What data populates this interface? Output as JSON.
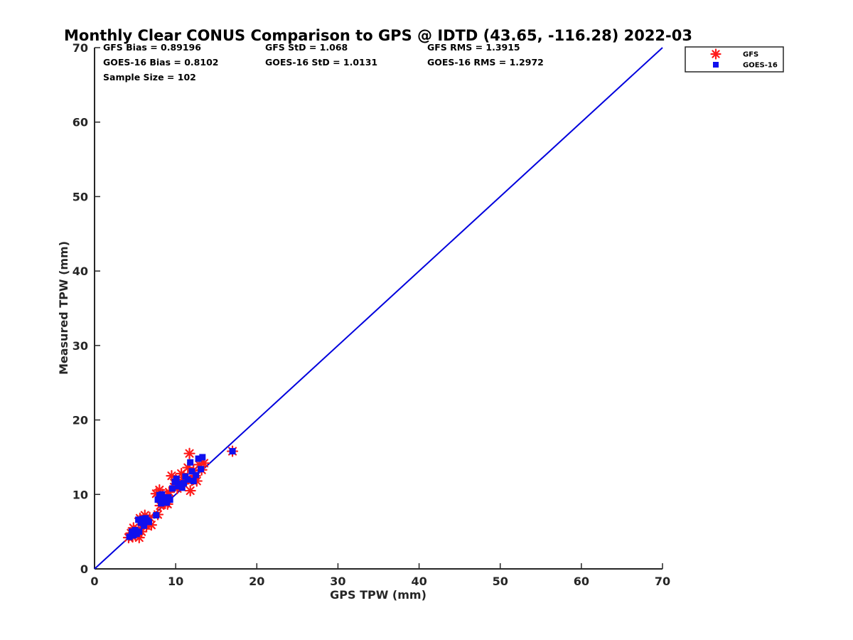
{
  "chart_data": {
    "type": "scatter",
    "title": "Monthly Clear CONUS Comparison to GPS @ IDTD (43.65, -116.28) 2022-03",
    "xlabel": "GPS TPW (mm)",
    "ylabel": "Measured TPW (mm)",
    "xlim": [
      0,
      70
    ],
    "ylim": [
      0,
      70
    ],
    "xticks": [
      "0",
      "10",
      "20",
      "30",
      "40",
      "50",
      "60",
      "70"
    ],
    "yticks": [
      "0",
      "10",
      "20",
      "30",
      "40",
      "50",
      "60",
      "70"
    ],
    "grid": false,
    "legend_position": "top-right",
    "stats": [
      [
        "GFS Bias = 0.89196",
        "GFS StD = 1.068",
        "GFS RMS = 1.3915"
      ],
      [
        "GOES-16 Bias = 0.8102",
        "GOES-16 StD = 1.0131",
        "GOES-16 RMS = 1.2972"
      ],
      [
        "Sample Size = 102"
      ]
    ],
    "reference_line": {
      "x": [
        0,
        70
      ],
      "y": [
        0,
        70
      ],
      "color": "#0000dd"
    },
    "series": [
      {
        "name": "GFS",
        "marker": "asterisk",
        "color": "#ff1a1a",
        "x": [
          4.2,
          4.5,
          4.7,
          4.8,
          5.0,
          5.2,
          5.4,
          5.5,
          5.6,
          5.8,
          6.0,
          6.2,
          6.4,
          6.6,
          6.8,
          7.0,
          7.6,
          7.8,
          8.0,
          8.1,
          8.2,
          8.4,
          8.5,
          8.7,
          8.9,
          9.0,
          9.2,
          9.5,
          9.8,
          10.0,
          10.2,
          10.5,
          10.7,
          10.9,
          11.0,
          11.3,
          11.5,
          11.7,
          11.8,
          12.0,
          12.2,
          12.4,
          12.6,
          12.9,
          13.2,
          13.5,
          17.0
        ],
        "y": [
          4.2,
          4.8,
          4.3,
          5.5,
          4.6,
          4.9,
          5.3,
          4.2,
          6.8,
          5.0,
          6.3,
          7.2,
          5.8,
          6.0,
          6.9,
          5.9,
          10.1,
          7.3,
          10.6,
          8.5,
          9.4,
          10.0,
          9.0,
          8.8,
          9.7,
          8.7,
          10.3,
          12.5,
          11.0,
          12.0,
          10.8,
          11.2,
          12.8,
          11.5,
          12.3,
          12.0,
          13.6,
          15.5,
          10.5,
          11.9,
          13.2,
          12.5,
          11.8,
          14.0,
          13.3,
          14.2,
          15.8
        ]
      },
      {
        "name": "GOES-16",
        "marker": "square",
        "color": "#1010ee",
        "x": [
          4.3,
          4.6,
          4.8,
          5.0,
          5.2,
          5.4,
          5.5,
          5.7,
          5.9,
          6.1,
          6.3,
          6.5,
          6.7,
          7.6,
          7.8,
          8.0,
          8.2,
          8.3,
          8.5,
          8.7,
          8.9,
          9.1,
          9.3,
          9.6,
          9.9,
          10.1,
          10.3,
          10.6,
          10.8,
          11.0,
          11.2,
          11.5,
          11.8,
          12.0,
          12.2,
          12.5,
          12.8,
          13.1,
          13.3,
          17.0
        ],
        "y": [
          4.3,
          5.0,
          4.5,
          5.2,
          4.7,
          6.6,
          5.0,
          6.2,
          6.7,
          5.8,
          6.8,
          6.5,
          6.3,
          7.2,
          9.3,
          9.9,
          8.8,
          10.0,
          9.5,
          9.1,
          8.9,
          9.6,
          9.3,
          10.8,
          11.7,
          12.1,
          11.1,
          11.4,
          10.9,
          11.5,
          12.4,
          12.0,
          14.3,
          13.1,
          11.8,
          12.6,
          14.8,
          13.4,
          15.0,
          15.8
        ]
      }
    ]
  }
}
